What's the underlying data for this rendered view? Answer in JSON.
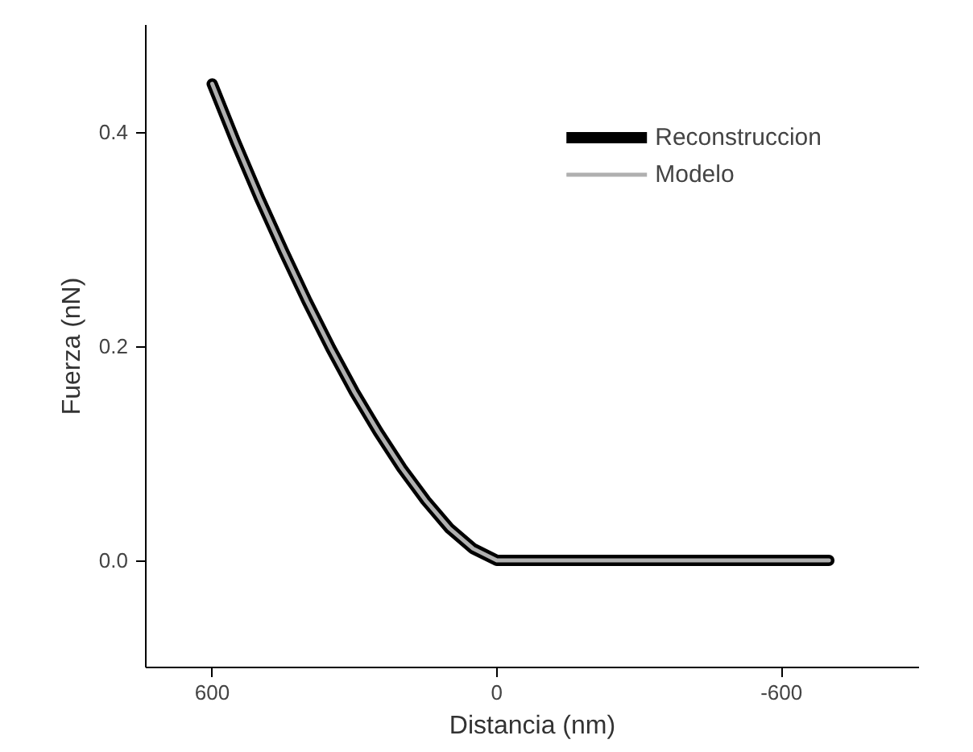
{
  "chart_data": {
    "type": "line",
    "xlabel": "Distancia (nm)",
    "ylabel": "Fuerza (nN)",
    "x": [
      600,
      550,
      500,
      450,
      400,
      350,
      300,
      250,
      200,
      150,
      100,
      50,
      0,
      -700
    ],
    "series": [
      {
        "name": "Reconstruccion",
        "color": "#000000",
        "values": [
          0.445,
          0.39,
          0.338,
          0.289,
          0.242,
          0.198,
          0.157,
          0.12,
          0.086,
          0.056,
          0.03,
          0.011,
          0,
          0
        ]
      },
      {
        "name": "Modelo",
        "color": "#b0b0b0",
        "values": [
          0.445,
          0.39,
          0.338,
          0.289,
          0.242,
          0.198,
          0.157,
          0.12,
          0.086,
          0.056,
          0.03,
          0.011,
          0,
          0
        ]
      }
    ],
    "xlim": [
      740,
      -890
    ],
    "xticks": [
      600,
      0,
      -600
    ],
    "ylim": [
      -0.1,
      0.5
    ],
    "yticks": [
      {
        "value": 0,
        "label": "0.0"
      },
      0.2,
      0.4
    ],
    "grid": false,
    "legend": "top right",
    "marker": "none",
    "line_style": "solid"
  }
}
